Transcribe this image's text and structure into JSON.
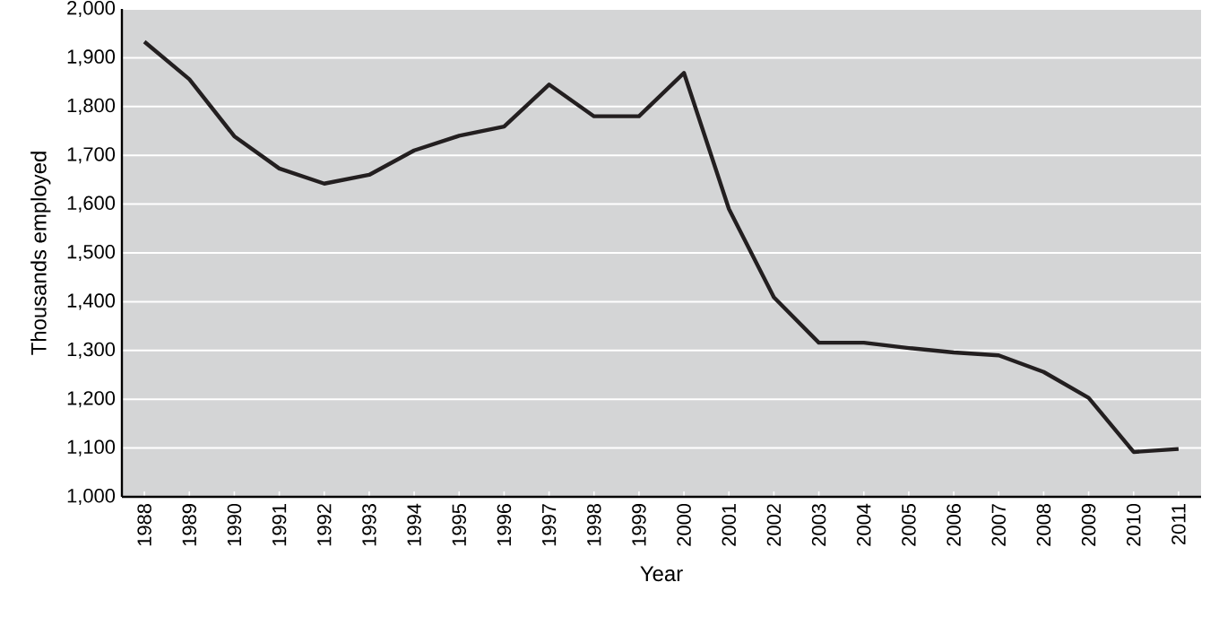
{
  "chart_data": {
    "type": "line",
    "xlabel": "Year",
    "ylabel": "Thousands employed",
    "categories": [
      "1988",
      "1989",
      "1990",
      "1991",
      "1992",
      "1993",
      "1994",
      "1995",
      "1996",
      "1997",
      "1998",
      "1999",
      "2000",
      "2001",
      "2002",
      "2003",
      "2004",
      "2005",
      "2006",
      "2007",
      "2008",
      "2009",
      "2010",
      "2011"
    ],
    "series": [
      {
        "color": "#231f20",
        "values": [
          1933,
          1856,
          1739,
          1673,
          1642,
          1660,
          1710,
          1740,
          1759,
          1845,
          1780,
          1780,
          1869,
          1590,
          1409,
          1316,
          1316,
          1305,
          1296,
          1290,
          1256,
          1203,
          1092,
          1098
        ]
      }
    ],
    "ylim": [
      1000,
      2000
    ],
    "yticks": [
      {
        "value": 1000,
        "label": "1,000"
      },
      {
        "value": 1100,
        "label": "1,100"
      },
      {
        "value": 1200,
        "label": "1,200"
      },
      {
        "value": 1300,
        "label": "1,300"
      },
      {
        "value": 1400,
        "label": "1,400"
      },
      {
        "value": 1500,
        "label": "1,500"
      },
      {
        "value": 1600,
        "label": "1,600"
      },
      {
        "value": 1700,
        "label": "1,700"
      },
      {
        "value": 1800,
        "label": "1,800"
      },
      {
        "value": 1900,
        "label": "1,900"
      },
      {
        "value": 2000,
        "label": "2,000"
      }
    ],
    "grid": "y",
    "marker": "none",
    "line_style": "solid"
  }
}
